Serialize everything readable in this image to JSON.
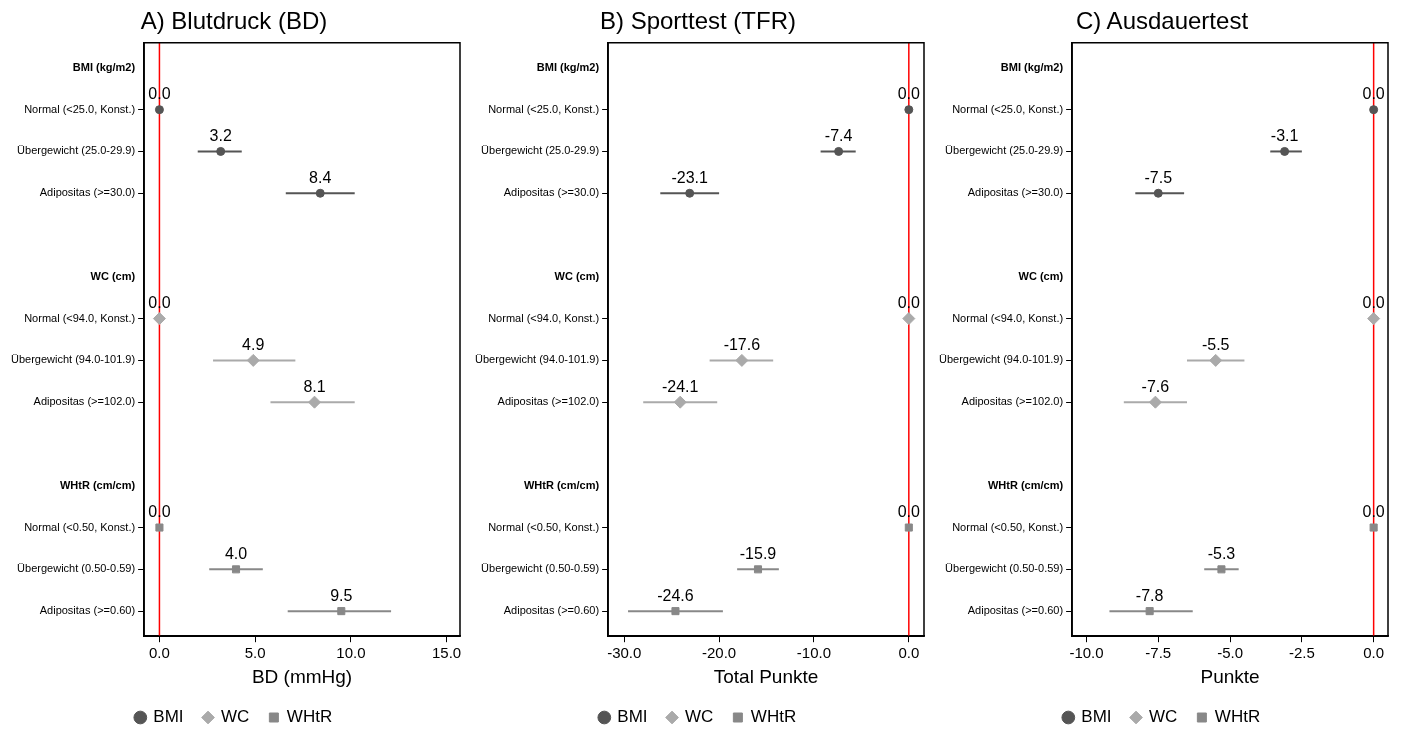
{
  "chart_data": [
    {
      "type": "scatter",
      "orientation": "horizontal",
      "title": "A) Blutdruck (BD)",
      "xlabel": "BD (mmHg)",
      "categories": [
        "BMI (kg/m2)",
        "Normal (<25.0, Konst.)",
        "Übergewicht (25.0-29.9)",
        "Adipositas (>=30.0)",
        null,
        "WC (cm)",
        "Normal (<94.0, Konst.)",
        "Übergewicht (94.0-101.9)",
        "Adipositas (>=102.0)",
        null,
        "WHtR (cm/cm)",
        "Normal (<0.50, Konst.)",
        "Übergewicht (0.50-0.59)",
        "Adipositas (>=0.60)"
      ],
      "series": [
        {
          "name": "BMI",
          "color": "#555555",
          "marker": "circle",
          "values": [
            null,
            0.0,
            3.2,
            8.4,
            null,
            null,
            null,
            null,
            null,
            null,
            null,
            null,
            null,
            null
          ],
          "errors": [
            null,
            null,
            [
              2.0,
              4.3
            ],
            [
              6.6,
              10.2
            ],
            null,
            null,
            null,
            null,
            null,
            null,
            null,
            null,
            null,
            null
          ],
          "value_labels": [
            null,
            "0.0",
            "3.2",
            "8.4",
            null,
            null,
            null,
            null,
            null,
            null,
            null,
            null,
            null,
            null
          ]
        },
        {
          "name": "WC",
          "color": "#aaaaaa",
          "marker": "diamond",
          "values": [
            null,
            null,
            null,
            null,
            null,
            null,
            0.0,
            4.9,
            8.1,
            null,
            null,
            null,
            null,
            null
          ],
          "errors": [
            null,
            null,
            null,
            null,
            null,
            null,
            null,
            [
              2.8,
              7.1
            ],
            [
              5.8,
              10.2
            ],
            null,
            null,
            null,
            null,
            null
          ],
          "value_labels": [
            null,
            null,
            null,
            null,
            null,
            null,
            "0.0",
            "4.9",
            "8.1",
            null,
            null,
            null,
            null,
            null
          ]
        },
        {
          "name": "WHtR",
          "color": "#888888",
          "marker": "square",
          "values": [
            null,
            null,
            null,
            null,
            null,
            null,
            null,
            null,
            null,
            null,
            null,
            0.0,
            4.0,
            9.5
          ],
          "errors": [
            null,
            null,
            null,
            null,
            null,
            null,
            null,
            null,
            null,
            null,
            null,
            null,
            [
              2.6,
              5.4
            ],
            [
              6.7,
              12.1
            ]
          ],
          "value_labels": [
            null,
            null,
            null,
            null,
            null,
            null,
            null,
            null,
            null,
            null,
            null,
            "0.0",
            "4.0",
            "9.5"
          ]
        }
      ],
      "xlim": [
        -0.8,
        15.7
      ],
      "xticks": [
        {
          "value": 0,
          "label": "0.0"
        },
        {
          "value": 5,
          "label": "5.0"
        },
        {
          "value": 10,
          "label": "10.0"
        },
        {
          "value": 15,
          "label": "15.0"
        }
      ],
      "ref_lines": [
        {
          "axis": "x",
          "value": 0,
          "color": "#ff0000"
        }
      ],
      "grid": false,
      "legend": "bottom"
    },
    {
      "type": "scatter",
      "orientation": "horizontal",
      "title": "B) Sporttest (TFR)",
      "xlabel": "Total Punkte",
      "categories": [
        "BMI (kg/m2)",
        "Normal (<25.0, Konst.)",
        "Übergewicht (25.0-29.9)",
        "Adipositas (>=30.0)",
        null,
        "WC (cm)",
        "Normal (<94.0, Konst.)",
        "Übergewicht (94.0-101.9)",
        "Adipositas (>=102.0)",
        null,
        "WHtR (cm/cm)",
        "Normal (<0.50, Konst.)",
        "Übergewicht (0.50-0.59)",
        "Adipositas (>=0.60)"
      ],
      "series": [
        {
          "name": "BMI",
          "color": "#555555",
          "marker": "circle",
          "values": [
            null,
            0.0,
            -7.4,
            -23.1,
            null,
            null,
            null,
            null,
            null,
            null,
            null,
            null,
            null,
            null
          ],
          "errors": [
            null,
            null,
            [
              -9.3,
              -5.6
            ],
            [
              -26.2,
              -20.0
            ],
            null,
            null,
            null,
            null,
            null,
            null,
            null,
            null,
            null,
            null
          ],
          "value_labels": [
            null,
            "0.0",
            "-7.4",
            "-23.1",
            null,
            null,
            null,
            null,
            null,
            null,
            null,
            null,
            null,
            null
          ]
        },
        {
          "name": "WC",
          "color": "#aaaaaa",
          "marker": "diamond",
          "values": [
            null,
            null,
            null,
            null,
            null,
            null,
            0.0,
            -17.6,
            -24.1,
            null,
            null,
            null,
            null,
            null
          ],
          "errors": [
            null,
            null,
            null,
            null,
            null,
            null,
            null,
            [
              -21.0,
              -14.3
            ],
            [
              -28.0,
              -20.2
            ],
            null,
            null,
            null,
            null,
            null
          ],
          "value_labels": [
            null,
            null,
            null,
            null,
            null,
            null,
            "0.0",
            "-17.6",
            "-24.1",
            null,
            null,
            null,
            null,
            null
          ]
        },
        {
          "name": "WHtR",
          "color": "#888888",
          "marker": "square",
          "values": [
            null,
            null,
            null,
            null,
            null,
            null,
            null,
            null,
            null,
            null,
            null,
            0.0,
            -15.9,
            -24.6
          ],
          "errors": [
            null,
            null,
            null,
            null,
            null,
            null,
            null,
            null,
            null,
            null,
            null,
            null,
            [
              -18.1,
              -13.7
            ],
            [
              -29.6,
              -19.6
            ]
          ],
          "value_labels": [
            null,
            null,
            null,
            null,
            null,
            null,
            null,
            null,
            null,
            null,
            null,
            "0.0",
            "-15.9",
            "-24.6"
          ]
        }
      ],
      "xlim": [
        -31.7,
        1.6
      ],
      "xticks": [
        {
          "value": -30,
          "label": "-30.0"
        },
        {
          "value": -20,
          "label": "-20.0"
        },
        {
          "value": -10,
          "label": "-10.0"
        },
        {
          "value": 0,
          "label": "0.0"
        }
      ],
      "ref_lines": [
        {
          "axis": "x",
          "value": 0,
          "color": "#ff0000"
        }
      ],
      "grid": false,
      "legend": "bottom"
    },
    {
      "type": "scatter",
      "orientation": "horizontal",
      "title": "C) Ausdauertest",
      "xlabel": "Punkte",
      "categories": [
        "BMI (kg/m2)",
        "Normal (<25.0, Konst.)",
        "Übergewicht (25.0-29.9)",
        "Adipositas (>=30.0)",
        null,
        "WC (cm)",
        "Normal (<94.0, Konst.)",
        "Übergewicht (94.0-101.9)",
        "Adipositas (>=102.0)",
        null,
        "WHtR (cm/cm)",
        "Normal (<0.50, Konst.)",
        "Übergewicht (0.50-0.59)",
        "Adipositas (>=0.60)"
      ],
      "series": [
        {
          "name": "BMI",
          "color": "#555555",
          "marker": "circle",
          "values": [
            null,
            0.0,
            -3.1,
            -7.5,
            null,
            null,
            null,
            null,
            null,
            null,
            null,
            null,
            null,
            null
          ],
          "errors": [
            null,
            null,
            [
              -3.6,
              -2.5
            ],
            [
              -8.3,
              -6.6
            ],
            null,
            null,
            null,
            null,
            null,
            null,
            null,
            null,
            null,
            null
          ],
          "value_labels": [
            null,
            "0.0",
            "-3.1",
            "-7.5",
            null,
            null,
            null,
            null,
            null,
            null,
            null,
            null,
            null,
            null
          ]
        },
        {
          "name": "WC",
          "color": "#aaaaaa",
          "marker": "diamond",
          "values": [
            null,
            null,
            null,
            null,
            null,
            null,
            0.0,
            -5.5,
            -7.6,
            null,
            null,
            null,
            null,
            null
          ],
          "errors": [
            null,
            null,
            null,
            null,
            null,
            null,
            null,
            [
              -6.5,
              -4.5
            ],
            [
              -8.7,
              -6.5
            ],
            null,
            null,
            null,
            null,
            null
          ],
          "value_labels": [
            null,
            null,
            null,
            null,
            null,
            null,
            "0.0",
            "-5.5",
            "-7.6",
            null,
            null,
            null,
            null,
            null
          ]
        },
        {
          "name": "WHtR",
          "color": "#888888",
          "marker": "square",
          "values": [
            null,
            null,
            null,
            null,
            null,
            null,
            null,
            null,
            null,
            null,
            null,
            0.0,
            -5.3,
            -7.8
          ],
          "errors": [
            null,
            null,
            null,
            null,
            null,
            null,
            null,
            null,
            null,
            null,
            null,
            null,
            [
              -5.9,
              -4.7
            ],
            [
              -9.2,
              -6.3
            ]
          ],
          "value_labels": [
            null,
            null,
            null,
            null,
            null,
            null,
            null,
            null,
            null,
            null,
            null,
            "0.0",
            "-5.3",
            "-7.8"
          ]
        }
      ],
      "xlim": [
        -10.5,
        0.5
      ],
      "xticks": [
        {
          "value": -10,
          "label": "-10.0"
        },
        {
          "value": -7.5,
          "label": "-7.5"
        },
        {
          "value": -5,
          "label": "-5.0"
        },
        {
          "value": -2.5,
          "label": "-2.5"
        },
        {
          "value": 0,
          "label": "0.0"
        }
      ],
      "ref_lines": [
        {
          "axis": "x",
          "value": 0,
          "color": "#ff0000"
        }
      ],
      "grid": false,
      "legend": "bottom"
    }
  ]
}
